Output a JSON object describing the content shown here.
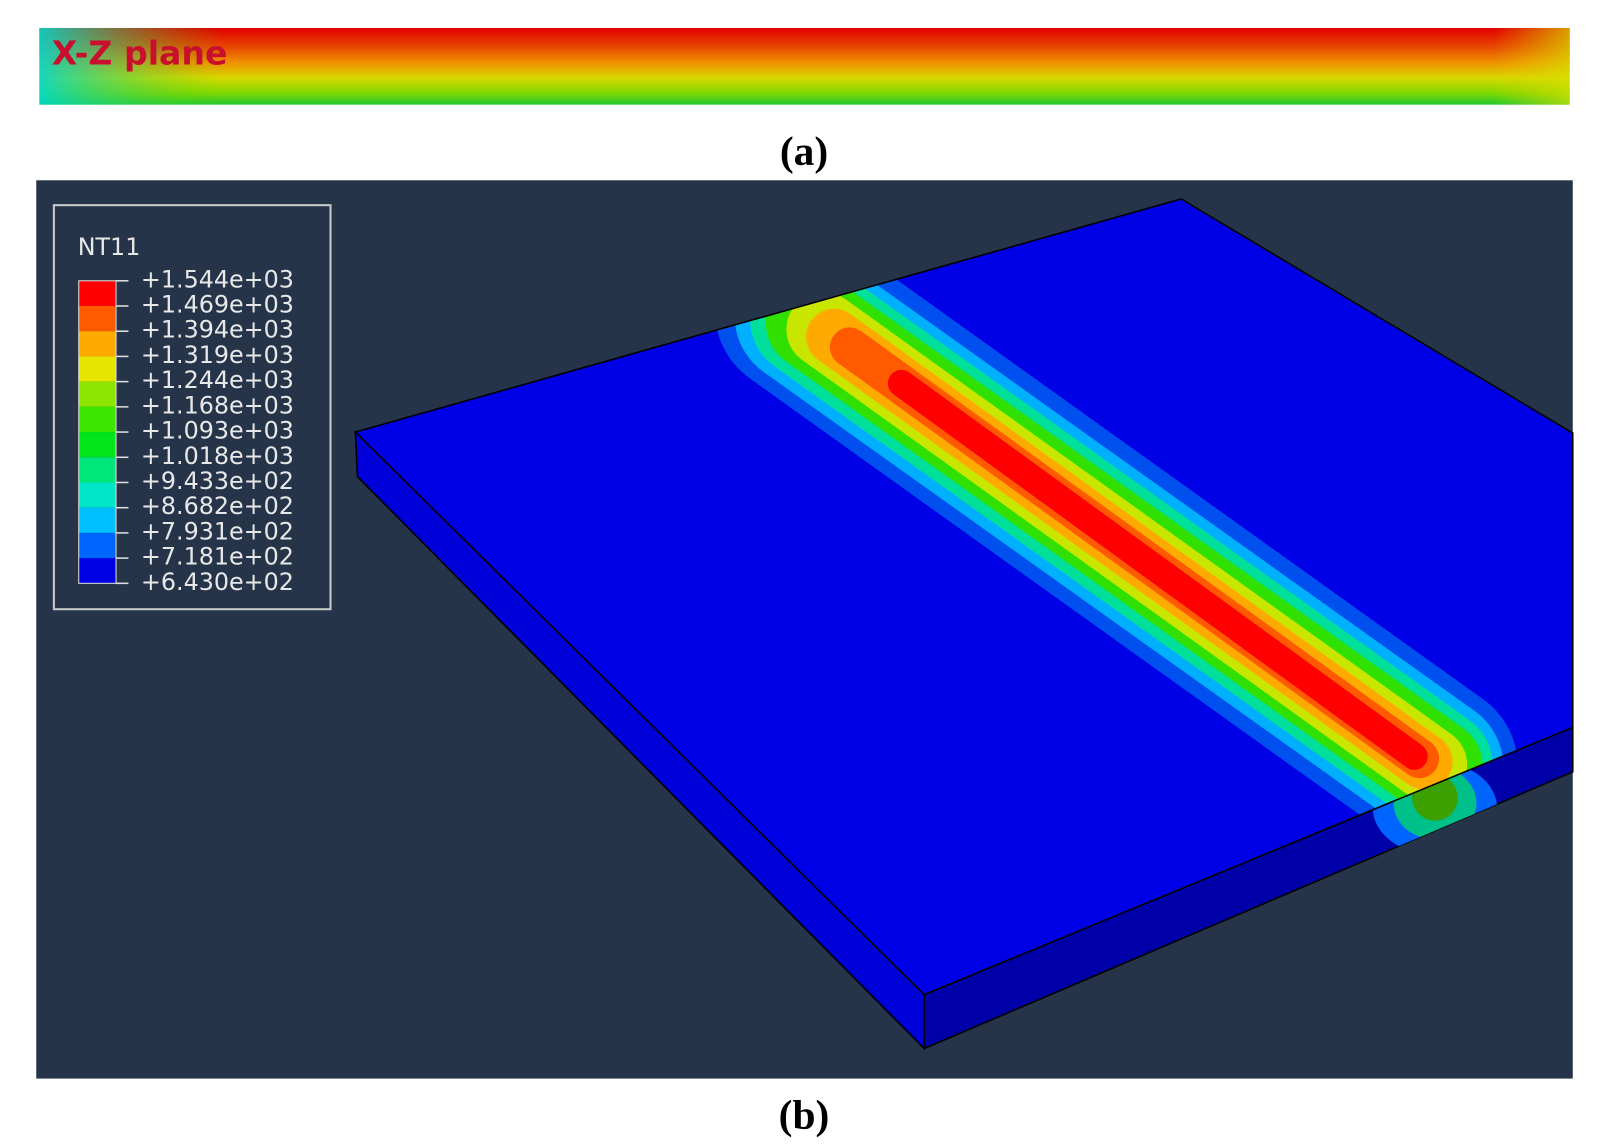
{
  "panel_a": {
    "title": "X-Z plane",
    "caption": "(a)"
  },
  "panel_b": {
    "caption": "(b)",
    "legend": {
      "title": "NT11",
      "labels": [
        "+1.544e+03",
        "+1.469e+03",
        "+1.394e+03",
        "+1.319e+03",
        "+1.244e+03",
        "+1.168e+03",
        "+1.093e+03",
        "+1.018e+03",
        "+9.433e+02",
        "+8.682e+02",
        "+7.931e+02",
        "+7.181e+02",
        "+6.430e+02"
      ],
      "colors": [
        "#ff0000",
        "#ff5a00",
        "#ffaa00",
        "#e6e600",
        "#8ce600",
        "#3ce600",
        "#00e61a",
        "#00e67a",
        "#00e6c8",
        "#00c0ff",
        "#0064ff",
        "#0000e6"
      ]
    }
  }
}
